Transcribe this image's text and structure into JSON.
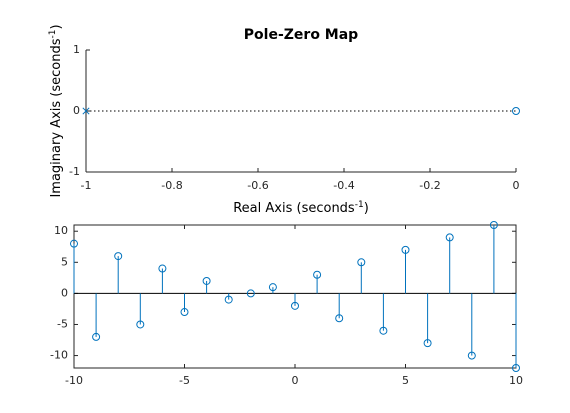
{
  "chart_data": [
    {
      "type": "scatter",
      "title": "Pole-Zero Map",
      "xlabel_base": "Real Axis (seconds",
      "xlabel_sup": "-1",
      "xlabel_close": ")",
      "ylabel_base": "Imaginary Axis (seconds",
      "ylabel_sup": "-1",
      "ylabel_close": ")",
      "xlim": [
        -1,
        0
      ],
      "ylim": [
        -1,
        1
      ],
      "xticks": [
        -1,
        -0.8,
        -0.6,
        -0.4,
        -0.2,
        0
      ],
      "xtick_labels": [
        "-1",
        "-0.8",
        "-0.6",
        "-0.4",
        "-0.2",
        "0"
      ],
      "yticks": [
        -1,
        0,
        1
      ],
      "ytick_labels": [
        "-1",
        "0",
        "1"
      ],
      "grid": false,
      "reference_line": {
        "y": 0,
        "style": "dotted"
      },
      "poles": [
        {
          "x": -1,
          "y": 0
        }
      ],
      "zeros": [
        {
          "x": 0,
          "y": 0
        }
      ],
      "color": "#0072bd"
    },
    {
      "type": "stem",
      "title": "",
      "xlabel": "",
      "ylabel": "",
      "xlim": [
        -10,
        10
      ],
      "ylim": [
        -12,
        11
      ],
      "xticks": [
        -10,
        -5,
        0,
        5,
        10
      ],
      "xtick_labels": [
        "-10",
        "-5",
        "0",
        "5",
        "10"
      ],
      "yticks": [
        -10,
        -5,
        0,
        5,
        10
      ],
      "ytick_labels": [
        "-10",
        "-5",
        "0",
        "5",
        "10"
      ],
      "grid": false,
      "baseline": 0,
      "x": [
        -10,
        -9,
        -8,
        -7,
        -6,
        -5,
        -4,
        -3,
        -2,
        -1,
        0,
        1,
        2,
        3,
        4,
        5,
        6,
        7,
        8,
        9,
        10
      ],
      "y": [
        8,
        -7,
        6,
        -5,
        4,
        -3,
        2,
        -1,
        0,
        1,
        -2,
        3,
        -4,
        5,
        -6,
        7,
        -8,
        9,
        -10,
        11,
        -12
      ],
      "color": "#0072bd"
    }
  ]
}
